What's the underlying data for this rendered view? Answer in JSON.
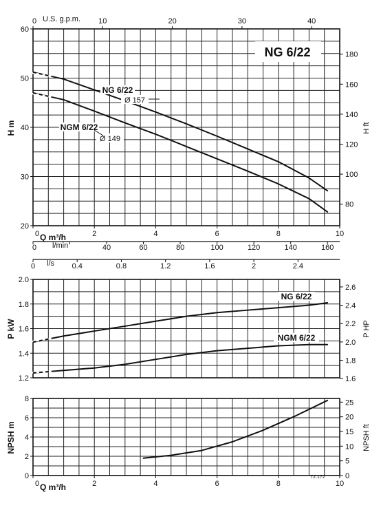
{
  "chart_data": [
    {
      "type": "line",
      "title": "NG 6/22",
      "xlabel": "Q m³/h",
      "ylabel": "H m",
      "ylabel_right": "H ft",
      "xlim": [
        0,
        10
      ],
      "ylim": [
        20,
        60
      ],
      "y_right_lim": [
        65.62,
        196.85
      ],
      "x_ticks": [
        0,
        2,
        4,
        6,
        8,
        10
      ],
      "x_tick_labels": [
        "0",
        "2",
        "4",
        "6",
        "8",
        "10"
      ],
      "y_ticks": [
        20,
        30,
        40,
        50,
        60
      ],
      "y_tick_labels": [
        "20",
        "30",
        "40",
        "50",
        "60"
      ],
      "y_right_ticks": [
        80,
        100,
        120,
        140,
        160,
        180
      ],
      "y_right_tick_labels": [
        "80",
        "100",
        "120",
        "140",
        "160",
        "180"
      ],
      "top_axis": {
        "label": "U.S. g.p.m.",
        "ticks": [
          0,
          10,
          20,
          30,
          40
        ],
        "tick_labels": [
          "0",
          "10",
          "20",
          "30",
          "40"
        ]
      },
      "lmin_axis": {
        "label": "l/min",
        "ticks": [
          0,
          20,
          40,
          60,
          80,
          100,
          120,
          140,
          160
        ],
        "tick_labels": [
          "0",
          "",
          "40",
          "60",
          "80",
          "100",
          "120",
          "140",
          "160"
        ]
      },
      "ls_axis": {
        "label": "l/s",
        "ticks": [
          0,
          0.4,
          0.8,
          1.2,
          1.6,
          2,
          2.4
        ],
        "tick_labels": [
          "0",
          "0.4",
          "0.8",
          "1.2",
          "1.6",
          "2",
          "2.4"
        ]
      },
      "series": [
        {
          "name": "NG 6/22",
          "sub": "Ø 157",
          "x": [
            0,
            1,
            2,
            3,
            4,
            5,
            6,
            7,
            8,
            9,
            9.6
          ],
          "y": [
            51.2,
            49.8,
            47.6,
            45.4,
            43.1,
            40.7,
            38.2,
            35.6,
            33.0,
            29.7,
            27.1
          ]
        },
        {
          "name": "NGM 6/22",
          "sub": "Ø 149",
          "x": [
            0,
            1,
            2,
            3,
            4,
            5,
            6,
            7,
            8,
            9,
            9.6
          ],
          "y": [
            47.0,
            45.6,
            43.3,
            40.9,
            38.6,
            36.1,
            33.6,
            31.1,
            28.5,
            25.5,
            22.8
          ]
        }
      ],
      "grid": true
    },
    {
      "type": "line",
      "xlabel": "",
      "ylabel": "P kW",
      "ylabel_right": "P HP",
      "xlim": [
        0,
        10
      ],
      "ylim": [
        1.2,
        2.0
      ],
      "y_right_lim": [
        1.609,
        2.682
      ],
      "y_ticks": [
        1.2,
        1.4,
        1.6,
        1.8,
        2.0
      ],
      "y_tick_labels": [
        "1.2",
        "1.4",
        "1.6",
        "1.8",
        "2.0"
      ],
      "y_right_ticks": [
        1.6,
        1.8,
        2.0,
        2.2,
        2.4,
        2.6
      ],
      "y_right_tick_labels": [
        "1.6",
        "1.8",
        "2.0",
        "2.2",
        "2.4",
        "2.6"
      ],
      "series": [
        {
          "name": "NG 6/22",
          "x": [
            0,
            1,
            2,
            3,
            4,
            5,
            6,
            7,
            8,
            9,
            9.6
          ],
          "y": [
            1.49,
            1.54,
            1.58,
            1.62,
            1.66,
            1.7,
            1.73,
            1.75,
            1.77,
            1.79,
            1.81
          ]
        },
        {
          "name": "NGM 6/22",
          "x": [
            0,
            1,
            2,
            3,
            4,
            5,
            6,
            7,
            8,
            9,
            9.6
          ],
          "y": [
            1.24,
            1.26,
            1.28,
            1.31,
            1.35,
            1.39,
            1.42,
            1.44,
            1.46,
            1.47,
            1.47
          ]
        }
      ],
      "grid": true
    },
    {
      "type": "line",
      "xlabel": "Q m³/h",
      "ylabel": "NPSH m",
      "ylabel_right": "NPSH ft",
      "xlim": [
        0,
        10
      ],
      "ylim": [
        0,
        8
      ],
      "y_right_lim": [
        0,
        26.25
      ],
      "x_ticks": [
        0,
        2,
        4,
        6,
        8,
        10
      ],
      "x_tick_labels": [
        "0",
        "2",
        "4",
        "6",
        "8",
        "10"
      ],
      "y_ticks": [
        0,
        2,
        4,
        6,
        8
      ],
      "y_tick_labels": [
        "0",
        "2",
        "4",
        "6",
        "8"
      ],
      "y_right_ticks": [
        0,
        5,
        10,
        15,
        20,
        25
      ],
      "y_right_tick_labels": [
        "0",
        "5",
        "10",
        "15",
        "20",
        "25"
      ],
      "series": [
        {
          "name": "",
          "x": [
            3.6,
            4.5,
            5.5,
            6.5,
            7.5,
            8.5,
            9.6
          ],
          "y": [
            1.8,
            2.1,
            2.6,
            3.5,
            4.7,
            6.1,
            7.8
          ]
        }
      ],
      "grid": true
    }
  ],
  "reference_code": "72.172",
  "dashed_from_zero": [
    [
      0,
      1,
      0.5
    ],
    [
      0,
      1,
      0.5
    ],
    [
      1,
      0,
      0.5
    ],
    [
      1,
      1,
      0.5
    ]
  ]
}
